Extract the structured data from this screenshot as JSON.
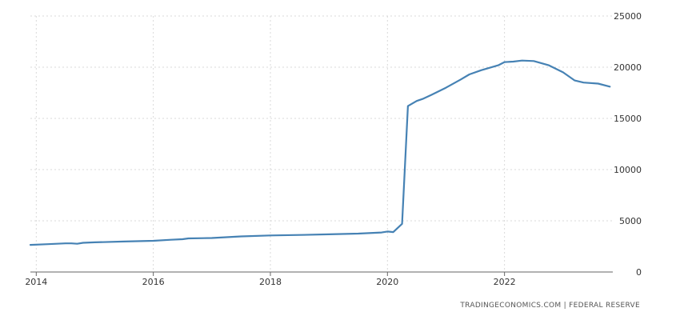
{
  "source_text": "TRADINGECONOMICS.COM  |  FEDERAL RESERVE",
  "colors": {
    "line": "#4682b4",
    "grid": "#d9d9d9",
    "axis": "#666666",
    "text": "#333333"
  },
  "chart_data": {
    "type": "line",
    "title": "",
    "xlabel": "",
    "ylabel": "",
    "xlim": [
      2013.9,
      2023.85
    ],
    "ylim": [
      0,
      25000
    ],
    "x_ticks": [
      2014,
      2016,
      2018,
      2020,
      2022
    ],
    "x_tick_labels": [
      "2014",
      "2016",
      "2018",
      "2020",
      "2022"
    ],
    "y_ticks": [
      0,
      5000,
      10000,
      15000,
      20000,
      25000
    ],
    "y_tick_labels": [
      "0",
      "5000",
      "10000",
      "15000",
      "20000",
      "25000"
    ],
    "grid": true,
    "y_axis_side": "right",
    "series": [
      {
        "x": [
          2013.9,
          2014.2,
          2014.5,
          2014.6,
          2014.7,
          2014.8,
          2015.0,
          2015.5,
          2016.0,
          2016.3,
          2016.5,
          2016.6,
          2017.0,
          2017.5,
          2018.0,
          2018.5,
          2019.0,
          2019.5,
          2019.9,
          2020.0,
          2020.1,
          2020.25,
          2020.35,
          2020.5,
          2020.6,
          2020.75,
          2021.0,
          2021.25,
          2021.4,
          2021.6,
          2021.9,
          2022.0,
          2022.15,
          2022.3,
          2022.5,
          2022.75,
          2023.0,
          2023.2,
          2023.35,
          2023.6,
          2023.8
        ],
        "y": [
          2650,
          2720,
          2800,
          2800,
          2760,
          2850,
          2900,
          2980,
          3050,
          3150,
          3200,
          3280,
          3320,
          3480,
          3570,
          3620,
          3680,
          3750,
          3860,
          3950,
          3900,
          4700,
          16200,
          16700,
          16900,
          17300,
          18000,
          18800,
          19300,
          19700,
          20200,
          20500,
          20550,
          20650,
          20600,
          20200,
          19500,
          18700,
          18500,
          18400,
          18100
        ]
      }
    ]
  }
}
